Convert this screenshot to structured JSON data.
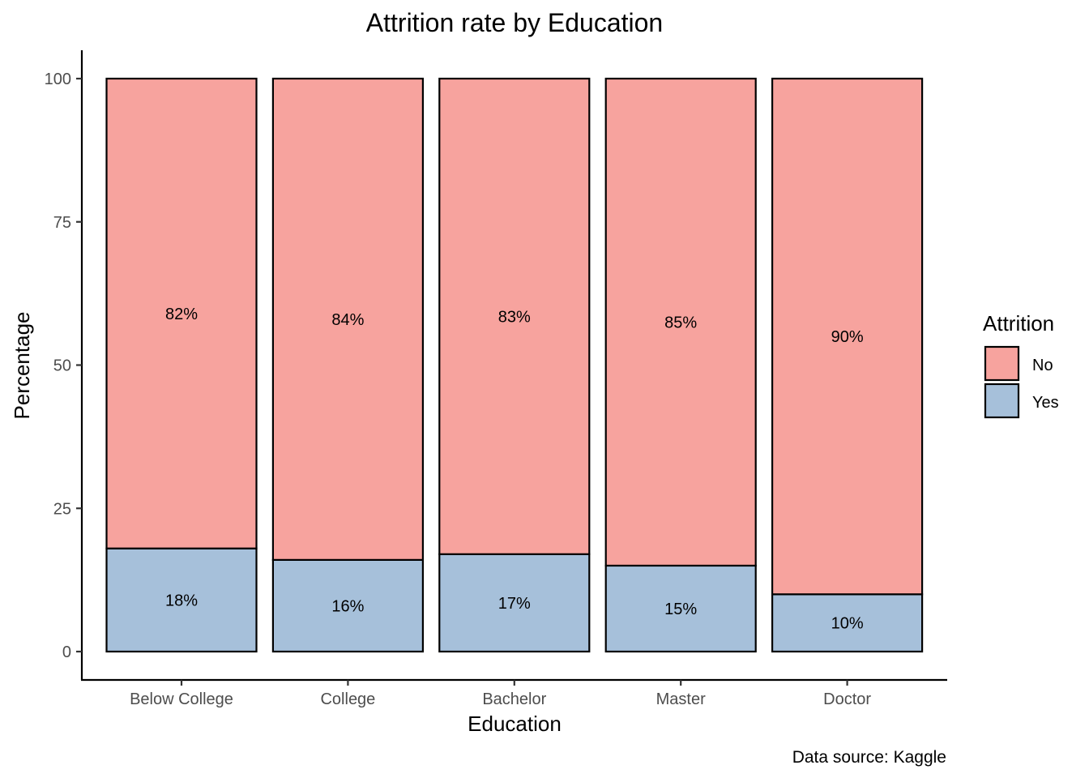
{
  "chart_data": {
    "type": "bar",
    "stacked": true,
    "title": "Attrition rate by Education",
    "xlabel": "Education",
    "ylabel": "Percentage",
    "caption": "Data source: Kaggle",
    "categories": [
      "Below College",
      "College",
      "Bachelor",
      "Master",
      "Doctor"
    ],
    "ylim": [
      0,
      100
    ],
    "yticks": [
      "0",
      "25",
      "50",
      "75",
      "100"
    ],
    "grid": false,
    "legend": {
      "title": "Attrition",
      "position": "right",
      "entries": [
        "No",
        "Yes"
      ]
    },
    "series": [
      {
        "name": "Yes",
        "color": "#a6c0da",
        "values": [
          18,
          16,
          17,
          15,
          10
        ],
        "labels": [
          "18%",
          "16%",
          "17%",
          "15%",
          "10%"
        ]
      },
      {
        "name": "No",
        "color": "#f7a39e",
        "values": [
          82,
          84,
          83,
          85,
          90
        ],
        "labels": [
          "82%",
          "84%",
          "83%",
          "85%",
          "90%"
        ]
      }
    ]
  }
}
